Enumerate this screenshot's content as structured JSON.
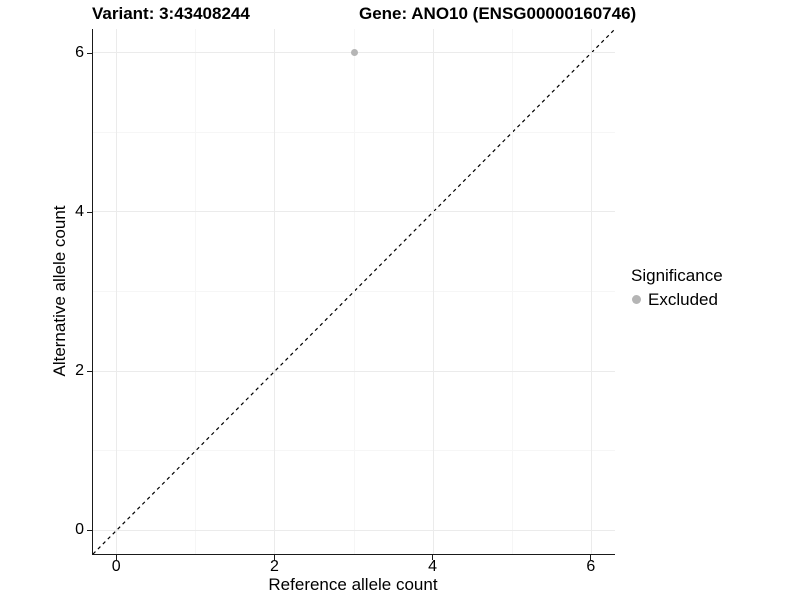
{
  "header": {
    "variant_title": "Variant: 3:43408244",
    "gene_title": "Gene: ANO10 (ENSG00000160746)"
  },
  "chart_data": {
    "type": "scatter",
    "title": "Variant: 3:43408244   Gene: ANO10 (ENSG00000160746)",
    "xlabel": "Reference allele count",
    "ylabel": "Alternative allele count",
    "xlim": [
      -0.3,
      6.3
    ],
    "ylim": [
      -0.3,
      6.3
    ],
    "x_ticks": [
      0,
      2,
      4,
      6
    ],
    "y_ticks": [
      0,
      2,
      4,
      6
    ],
    "x_minor_ticks": [
      1,
      3,
      5
    ],
    "y_minor_ticks": [
      1,
      3,
      5
    ],
    "grid": "major and minor gridlines on, white panel background",
    "legend": {
      "title": "Significance",
      "position": "right",
      "items": [
        {
          "label": "Excluded",
          "color": "#b5b5b5"
        }
      ]
    },
    "series": [
      {
        "name": "Excluded",
        "marker": "circle",
        "color": "#b5b5b5",
        "points": [
          {
            "x": 3,
            "y": 6
          }
        ]
      }
    ],
    "reference_line": {
      "kind": "identity",
      "equation": "y = x",
      "style": "dashed",
      "color": "#000000"
    }
  },
  "colors": {
    "background": "#ffffff",
    "point": "#b5b5b5",
    "grid_major": "#ebebeb",
    "grid_minor": "#f6f6f6",
    "axis_line": "#1a1a1a",
    "dashed_line": "#000000",
    "text": "#000000"
  }
}
